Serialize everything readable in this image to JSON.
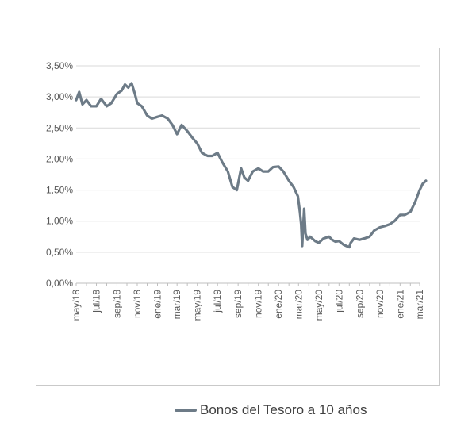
{
  "chart_data": {
    "type": "line",
    "title": "",
    "xlabel": "",
    "ylabel": "",
    "ylim": [
      0,
      3.5
    ],
    "y_ticks": [
      "0,00%",
      "0,50%",
      "1,00%",
      "1,50%",
      "2,00%",
      "2,50%",
      "3,00%",
      "3,50%"
    ],
    "y_tick_values": [
      0,
      0.5,
      1.0,
      1.5,
      2.0,
      2.5,
      3.0,
      3.5
    ],
    "x_ticks": [
      "may/18",
      "jul/18",
      "sep/18",
      "nov/18",
      "ene/19",
      "mar/19",
      "may/19",
      "jul/19",
      "sep/19",
      "nov/19",
      "ene/20",
      "mar/20",
      "may/20",
      "jul/20",
      "sep/20",
      "nov/20",
      "ene/21",
      "mar/21"
    ],
    "x_tick_dates": [
      "2018-05",
      "2018-07",
      "2018-09",
      "2018-11",
      "2019-01",
      "2019-03",
      "2019-05",
      "2019-07",
      "2019-09",
      "2019-11",
      "2020-01",
      "2020-03",
      "2020-05",
      "2020-07",
      "2020-09",
      "2020-11",
      "2021-01",
      "2021-03"
    ],
    "x_range": [
      "2018-05",
      "2021-03"
    ],
    "grid": true,
    "legend_position": "bottom",
    "series": [
      {
        "name": "Bonos del Tesoro a 10 años",
        "color": "#6d7b87",
        "x": [
          "2018-05-01",
          "2018-05-10",
          "2018-05-20",
          "2018-06-01",
          "2018-06-15",
          "2018-07-01",
          "2018-07-15",
          "2018-08-01",
          "2018-08-15",
          "2018-09-01",
          "2018-09-15",
          "2018-09-25",
          "2018-10-05",
          "2018-10-15",
          "2018-10-25",
          "2018-11-01",
          "2018-11-15",
          "2018-12-01",
          "2018-12-15",
          "2019-01-01",
          "2019-01-15",
          "2019-02-01",
          "2019-02-15",
          "2019-03-01",
          "2019-03-15",
          "2019-04-01",
          "2019-04-15",
          "2019-05-01",
          "2019-05-15",
          "2019-06-01",
          "2019-06-15",
          "2019-07-01",
          "2019-07-15",
          "2019-08-01",
          "2019-08-15",
          "2019-08-28",
          "2019-09-10",
          "2019-09-20",
          "2019-10-01",
          "2019-10-15",
          "2019-11-01",
          "2019-11-15",
          "2019-12-01",
          "2019-12-15",
          "2020-01-01",
          "2020-01-15",
          "2020-02-01",
          "2020-02-15",
          "2020-02-28",
          "2020-03-05",
          "2020-03-09",
          "2020-03-12",
          "2020-03-18",
          "2020-03-22",
          "2020-03-28",
          "2020-04-05",
          "2020-04-20",
          "2020-05-01",
          "2020-05-15",
          "2020-06-01",
          "2020-06-10",
          "2020-06-20",
          "2020-07-01",
          "2020-07-15",
          "2020-08-01",
          "2020-08-05",
          "2020-08-15",
          "2020-09-01",
          "2020-09-15",
          "2020-10-01",
          "2020-10-15",
          "2020-11-01",
          "2020-11-15",
          "2020-12-01",
          "2020-12-15",
          "2021-01-01",
          "2021-01-15",
          "2021-02-01",
          "2021-02-15",
          "2021-03-01",
          "2021-03-10",
          "2021-03-20"
        ],
        "values": [
          2.95,
          3.08,
          2.88,
          2.95,
          2.85,
          2.85,
          2.97,
          2.85,
          2.9,
          3.05,
          3.1,
          3.2,
          3.15,
          3.22,
          3.05,
          2.9,
          2.85,
          2.7,
          2.65,
          2.68,
          2.7,
          2.65,
          2.55,
          2.4,
          2.55,
          2.45,
          2.35,
          2.25,
          2.1,
          2.05,
          2.05,
          2.1,
          1.95,
          1.8,
          1.55,
          1.5,
          1.85,
          1.7,
          1.65,
          1.8,
          1.85,
          1.8,
          1.8,
          1.87,
          1.88,
          1.8,
          1.65,
          1.55,
          1.4,
          1.15,
          0.95,
          0.6,
          1.2,
          0.8,
          0.7,
          0.75,
          0.68,
          0.65,
          0.72,
          0.75,
          0.7,
          0.67,
          0.68,
          0.62,
          0.58,
          0.65,
          0.72,
          0.7,
          0.72,
          0.75,
          0.85,
          0.9,
          0.92,
          0.95,
          1.0,
          1.1,
          1.1,
          1.15,
          1.3,
          1.5,
          1.6,
          1.65
        ]
      }
    ]
  }
}
